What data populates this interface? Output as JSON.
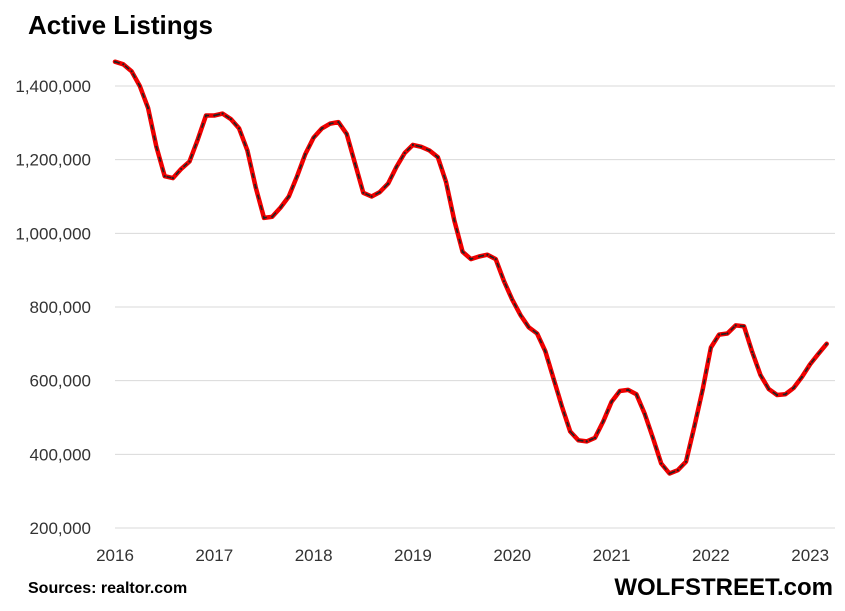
{
  "title": "Active Listings",
  "source": "Sources: realtor.com",
  "brand": "WOLFSTREET.com",
  "colors": {
    "line": "#ee0000",
    "dash": "#222222",
    "grid": "#d9d9d9"
  },
  "chart_data": {
    "type": "line",
    "title": "Active Listings",
    "xlabel": "",
    "ylabel": "",
    "ylim": [
      200000,
      1400000
    ],
    "xlim": [
      2016.0,
      2023.25
    ],
    "grid": true,
    "yticks": [
      200000,
      400000,
      600000,
      800000,
      1000000,
      1200000,
      1400000
    ],
    "ytick_labels": [
      "200,000",
      "400,000",
      "600,000",
      "800,000",
      "1,000,000",
      "1,200,000",
      "1,400,000"
    ],
    "xticks": [
      2016,
      2017,
      2018,
      2019,
      2020,
      2021,
      2022,
      2023
    ],
    "xtick_labels": [
      "2016",
      "2017",
      "2018",
      "2019",
      "2020",
      "2021",
      "2022",
      "2023"
    ],
    "series": [
      {
        "values": [
          1466000,
          1459000,
          1440000,
          1400000,
          1340000,
          1235000,
          1155000,
          1150000,
          1175000,
          1195000,
          1255000,
          1320000,
          1320000,
          1325000,
          1310000,
          1285000,
          1225000,
          1125000,
          1042000,
          1045000,
          1070000,
          1100000,
          1155000,
          1215000,
          1260000,
          1285000,
          1298000,
          1302000,
          1270000,
          1190000,
          1110000,
          1100000,
          1112000,
          1135000,
          1180000,
          1218000,
          1240000,
          1235000,
          1225000,
          1207000,
          1140000,
          1035000,
          950000,
          930000,
          937000,
          942000,
          930000,
          870000,
          820000,
          778000,
          745000,
          728000,
          680000,
          605000,
          530000,
          462000,
          438000,
          435000,
          445000,
          490000,
          543000,
          572000,
          575000,
          563000,
          510000,
          445000,
          375000,
          348000,
          357000,
          380000,
          475000,
          575000,
          690000,
          725000,
          728000,
          750000,
          748000,
          678000,
          615000,
          577000,
          561000,
          563000,
          580000,
          610000,
          645000,
          673000,
          700000
        ],
        "x_start": "2016-01",
        "frequency": "monthly"
      }
    ]
  }
}
